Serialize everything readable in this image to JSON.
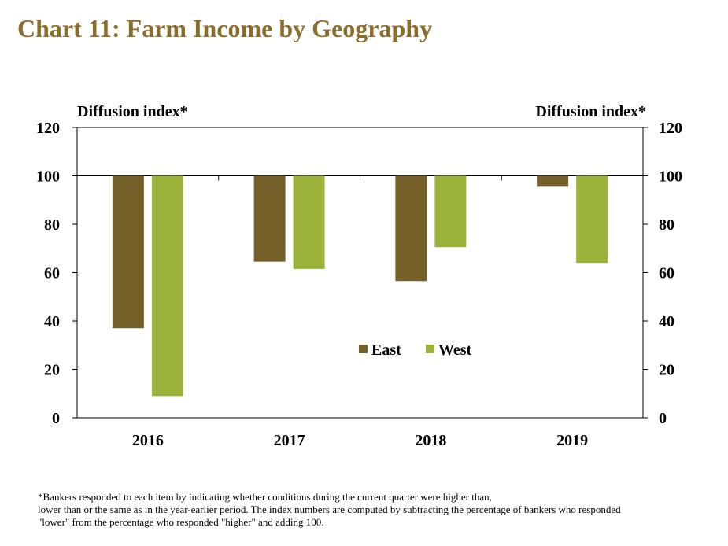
{
  "title": "Chart 11: Farm Income by Geography",
  "chart_data": {
    "type": "bar",
    "title": "Chart 11: Farm Income by Geography",
    "xlabel": "",
    "ylabel": "Diffusion index*",
    "ylabel_right": "Diffusion index*",
    "categories": [
      "2016",
      "2017",
      "2018",
      "2019"
    ],
    "baseline": 100,
    "series": [
      {
        "name": "East",
        "values": [
          37,
          64.5,
          56.5,
          95.5
        ],
        "color": "#76602a"
      },
      {
        "name": "West",
        "values": [
          9,
          61.5,
          70.5,
          64
        ]
      }
    ],
    "series_colors": [
      "#76602a",
      "#9bb33a"
    ],
    "ylim": [
      0,
      120
    ],
    "yticks": [
      "0",
      "20",
      "40",
      "60",
      "80",
      "100",
      "120"
    ],
    "dual_y_axis": true,
    "grid": false,
    "legend_position": "center"
  },
  "footnote": [
    "*Bankers responded to each item by indicating whether conditions during the current quarter were higher than,",
    "lower than or the same as in the year-earlier period.  The index numbers are computed by subtracting the percentage of bankers who responded",
    "\"lower\" from the percentage who responded \"higher\" and adding 100."
  ]
}
